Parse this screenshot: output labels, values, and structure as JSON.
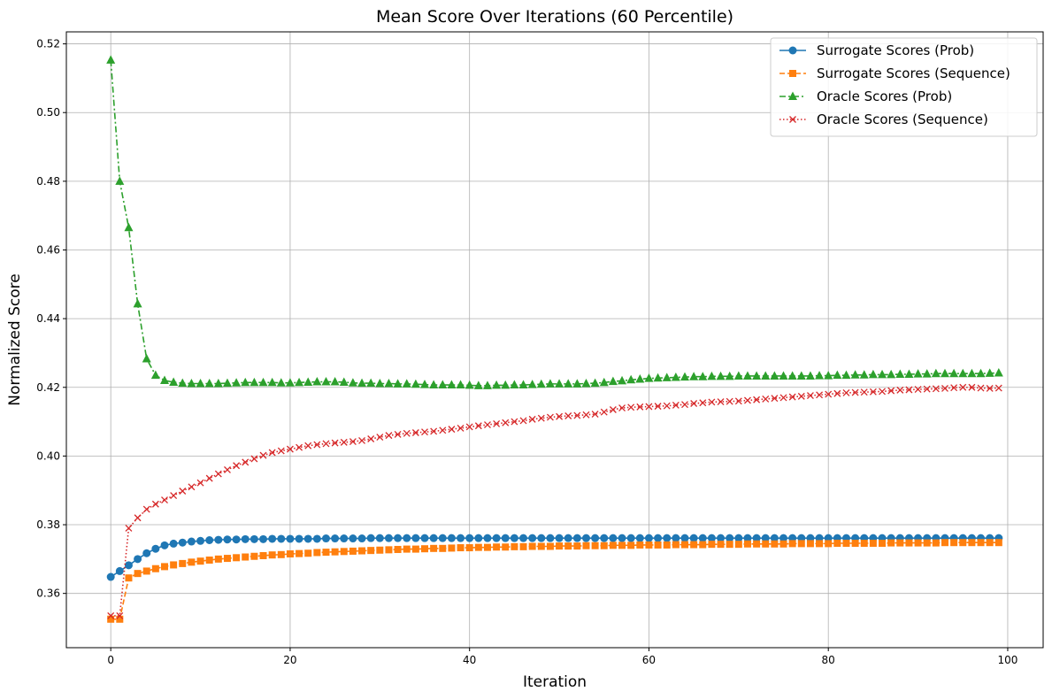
{
  "chart_data": {
    "type": "line",
    "title": "Mean Score Over Iterations (60 Percentile)",
    "xlabel": "Iteration",
    "ylabel": "Normalized Score",
    "xlim": [
      -4.95,
      103.95
    ],
    "ylim": [
      0.3442,
      0.5235
    ],
    "xticks": [
      0,
      20,
      40,
      60,
      80,
      100
    ],
    "yticks": [
      0.36,
      0.38,
      0.4,
      0.42,
      0.44,
      0.46,
      0.48,
      0.5,
      0.52
    ],
    "ytick_labels": [
      "0.36",
      "0.38",
      "0.40",
      "0.42",
      "0.44",
      "0.46",
      "0.48",
      "0.50",
      "0.52"
    ],
    "grid": true,
    "legend_position": "top-right",
    "x": [
      0,
      1,
      2,
      3,
      4,
      5,
      6,
      7,
      8,
      9,
      10,
      11,
      12,
      13,
      14,
      15,
      16,
      17,
      18,
      19,
      20,
      21,
      22,
      23,
      24,
      25,
      26,
      27,
      28,
      29,
      30,
      31,
      32,
      33,
      34,
      35,
      36,
      37,
      38,
      39,
      40,
      41,
      42,
      43,
      44,
      45,
      46,
      47,
      48,
      49,
      50,
      51,
      52,
      53,
      54,
      55,
      56,
      57,
      58,
      59,
      60,
      61,
      62,
      63,
      64,
      65,
      66,
      67,
      68,
      69,
      70,
      71,
      72,
      73,
      74,
      75,
      76,
      77,
      78,
      79,
      80,
      81,
      82,
      83,
      84,
      85,
      86,
      87,
      88,
      89,
      90,
      91,
      92,
      93,
      94,
      95,
      96,
      97,
      98,
      99
    ],
    "series": [
      {
        "name": "Surrogate Scores (Prob)",
        "color": "#1f77b4",
        "marker": "circle",
        "linestyle": "solid",
        "values": [
          0.3648,
          0.3665,
          0.3682,
          0.37,
          0.3717,
          0.373,
          0.374,
          0.3745,
          0.3748,
          0.3751,
          0.3753,
          0.3755,
          0.3756,
          0.3757,
          0.3757,
          0.3758,
          0.3758,
          0.3758,
          0.3759,
          0.3759,
          0.3759,
          0.3759,
          0.3759,
          0.3759,
          0.376,
          0.376,
          0.376,
          0.376,
          0.376,
          0.3761,
          0.3761,
          0.3761,
          0.3761,
          0.3761,
          0.3761,
          0.3761,
          0.3761,
          0.3761,
          0.3761,
          0.3761,
          0.3761,
          0.3761,
          0.3761,
          0.3761,
          0.3761,
          0.3761,
          0.3761,
          0.3761,
          0.3761,
          0.3761,
          0.3761,
          0.3761,
          0.3761,
          0.3761,
          0.3761,
          0.3761,
          0.3761,
          0.3761,
          0.3761,
          0.3761,
          0.3761,
          0.3761,
          0.3761,
          0.3761,
          0.3761,
          0.3761,
          0.3761,
          0.3761,
          0.3761,
          0.3761,
          0.3761,
          0.3761,
          0.3761,
          0.3761,
          0.3761,
          0.3761,
          0.3761,
          0.3761,
          0.3761,
          0.3761,
          0.3761,
          0.3761,
          0.3761,
          0.3761,
          0.3761,
          0.3761,
          0.3761,
          0.3761,
          0.3761,
          0.3761,
          0.3761,
          0.3761,
          0.3761,
          0.3761,
          0.3761,
          0.3761,
          0.3761,
          0.3761,
          0.3761,
          0.3761
        ]
      },
      {
        "name": "Surrogate Scores (Sequence)",
        "color": "#ff7f0e",
        "marker": "square",
        "linestyle": "dashed",
        "values": [
          0.3525,
          0.3525,
          0.3645,
          0.3658,
          0.3665,
          0.3672,
          0.3678,
          0.3683,
          0.3687,
          0.3691,
          0.3694,
          0.3697,
          0.37,
          0.3702,
          0.3704,
          0.3706,
          0.3708,
          0.371,
          0.3712,
          0.3713,
          0.3715,
          0.3716,
          0.3717,
          0.3719,
          0.372,
          0.3721,
          0.3722,
          0.3723,
          0.3724,
          0.3725,
          0.3726,
          0.3727,
          0.3728,
          0.3729,
          0.3729,
          0.373,
          0.3731,
          0.3731,
          0.3732,
          0.3733,
          0.3733,
          0.3734,
          0.3734,
          0.3735,
          0.3735,
          0.3736,
          0.3736,
          0.3737,
          0.3737,
          0.3737,
          0.3738,
          0.3738,
          0.3738,
          0.3739,
          0.3739,
          0.3739,
          0.374,
          0.374,
          0.374,
          0.3741,
          0.3741,
          0.3741,
          0.3741,
          0.3742,
          0.3742,
          0.3742,
          0.3742,
          0.3743,
          0.3743,
          0.3743,
          0.3743,
          0.3744,
          0.3744,
          0.3744,
          0.3744,
          0.3744,
          0.3745,
          0.3745,
          0.3745,
          0.3745,
          0.3745,
          0.3746,
          0.3746,
          0.3746,
          0.3746,
          0.3746,
          0.3746,
          0.3747,
          0.3747,
          0.3747,
          0.3747,
          0.3747,
          0.3747,
          0.3748,
          0.3748,
          0.3748,
          0.3748,
          0.3748,
          0.3748,
          0.3748
        ]
      },
      {
        "name": "Oracle Scores (Prob)",
        "color": "#2ca02c",
        "marker": "triangle",
        "linestyle": "dashdot",
        "values": [
          0.5153,
          0.48,
          0.4665,
          0.4443,
          0.4283,
          0.4235,
          0.422,
          0.4215,
          0.4212,
          0.4211,
          0.4211,
          0.4211,
          0.4211,
          0.4212,
          0.4213,
          0.4214,
          0.4214,
          0.4214,
          0.4214,
          0.4213,
          0.4213,
          0.4214,
          0.4215,
          0.4216,
          0.4216,
          0.4216,
          0.4215,
          0.4213,
          0.4212,
          0.4212,
          0.4211,
          0.4211,
          0.421,
          0.421,
          0.4209,
          0.4208,
          0.4207,
          0.4207,
          0.4207,
          0.4207,
          0.4206,
          0.4205,
          0.4205,
          0.4206,
          0.4206,
          0.4207,
          0.4207,
          0.4208,
          0.4209,
          0.421,
          0.421,
          0.421,
          0.421,
          0.4211,
          0.4212,
          0.4214,
          0.4217,
          0.4219,
          0.4222,
          0.4224,
          0.4226,
          0.4227,
          0.4228,
          0.4229,
          0.423,
          0.4231,
          0.4231,
          0.4232,
          0.4232,
          0.4232,
          0.4233,
          0.4233,
          0.4233,
          0.4233,
          0.4233,
          0.4233,
          0.4233,
          0.4233,
          0.4233,
          0.4234,
          0.4234,
          0.4235,
          0.4235,
          0.4236,
          0.4236,
          0.4237,
          0.4237,
          0.4237,
          0.4238,
          0.4238,
          0.4239,
          0.4239,
          0.424,
          0.424,
          0.424,
          0.424,
          0.424,
          0.424,
          0.4241,
          0.4242
        ]
      },
      {
        "name": "Oracle Scores (Sequence)",
        "color": "#d62728",
        "marker": "x",
        "linestyle": "dotted",
        "values": [
          0.3535,
          0.3535,
          0.379,
          0.382,
          0.3845,
          0.386,
          0.3872,
          0.3885,
          0.3898,
          0.391,
          0.3922,
          0.3935,
          0.3948,
          0.396,
          0.3972,
          0.3982,
          0.3992,
          0.4002,
          0.401,
          0.4015,
          0.402,
          0.4025,
          0.403,
          0.4033,
          0.4036,
          0.4038,
          0.404,
          0.4042,
          0.4045,
          0.405,
          0.4055,
          0.406,
          0.4063,
          0.4066,
          0.4068,
          0.407,
          0.4072,
          0.4075,
          0.4078,
          0.4081,
          0.4085,
          0.4088,
          0.4091,
          0.4094,
          0.4097,
          0.41,
          0.4103,
          0.4107,
          0.411,
          0.4113,
          0.4115,
          0.4117,
          0.4118,
          0.412,
          0.4122,
          0.4128,
          0.4135,
          0.414,
          0.4142,
          0.4143,
          0.4144,
          0.4145,
          0.4146,
          0.4148,
          0.415,
          0.4153,
          0.4155,
          0.4157,
          0.4158,
          0.4159,
          0.416,
          0.4162,
          0.4164,
          0.4166,
          0.4168,
          0.417,
          0.4172,
          0.4174,
          0.4176,
          0.4178,
          0.418,
          0.4182,
          0.4184,
          0.4185,
          0.4186,
          0.4187,
          0.4188,
          0.419,
          0.4192,
          0.4193,
          0.4194,
          0.4195,
          0.4196,
          0.4197,
          0.4199,
          0.42,
          0.42,
          0.4198,
          0.4197,
          0.4198
        ]
      }
    ]
  }
}
